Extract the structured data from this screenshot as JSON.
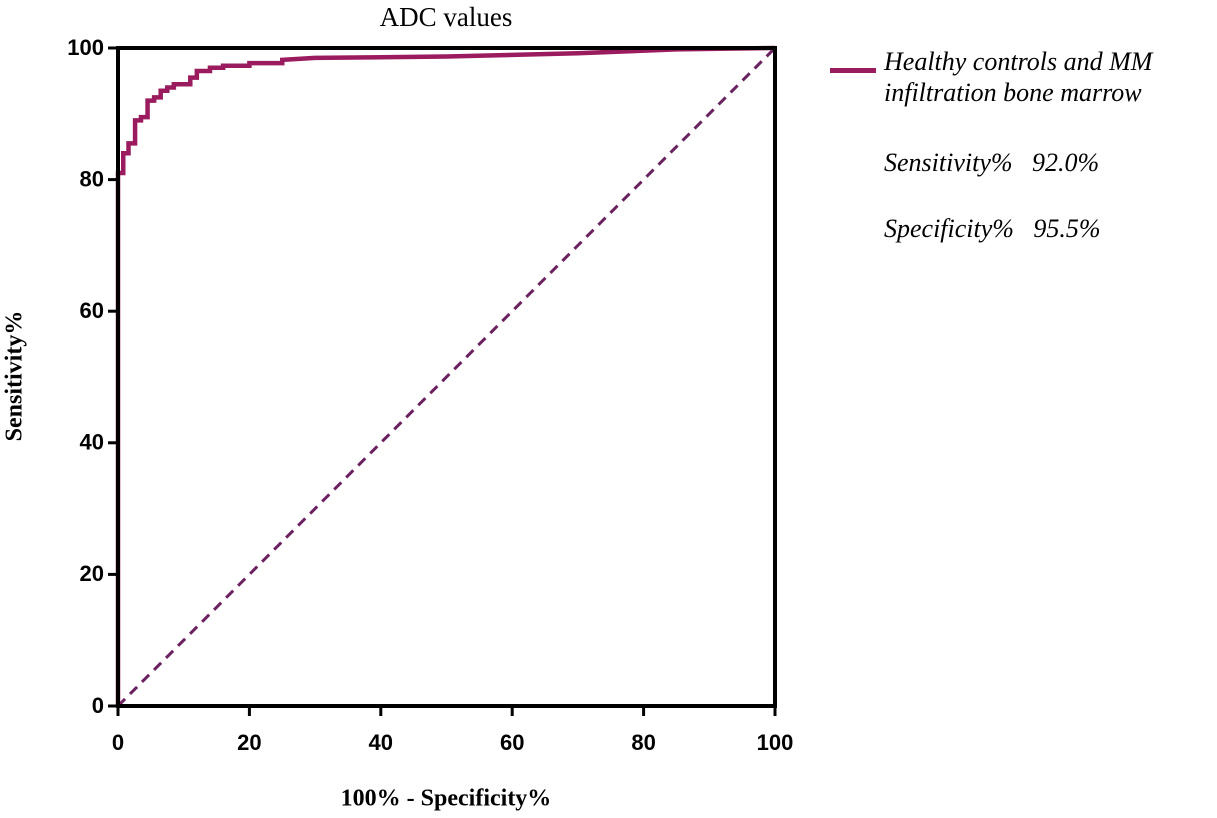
{
  "chart_data": {
    "type": "line",
    "title": "ADC values",
    "x_label": "100% - Specificity%",
    "y_label": "Sensitivity%",
    "x": [
      0,
      0,
      0.8,
      0.8,
      1.6,
      1.6,
      2.6,
      2.6,
      3.5,
      3.5,
      4.5,
      4.5,
      5.5,
      5.5,
      6.5,
      6.5,
      7.5,
      7.5,
      8.5,
      8.5,
      11,
      11,
      12,
      12,
      14,
      14,
      16,
      16,
      20,
      20,
      25,
      25,
      30,
      50,
      70,
      85,
      100
    ],
    "series": [
      {
        "name": "Healthy controls and MM infiltration bone marrow",
        "color": "#9b1b5f",
        "values": [
          0,
          81,
          81,
          84,
          84,
          85.5,
          85.5,
          89,
          89,
          89.5,
          89.5,
          92,
          92,
          92.5,
          92.5,
          93.5,
          93.5,
          94,
          94,
          94.5,
          94.5,
          95.5,
          95.5,
          96.5,
          96.5,
          97,
          97,
          97.3,
          97.3,
          97.7,
          97.7,
          98.2,
          98.5,
          98.7,
          99.2,
          99.8,
          100
        ]
      }
    ],
    "reference_line": {
      "x": [
        0,
        100
      ],
      "values": [
        0,
        100
      ],
      "color": "#6b2060",
      "dashed": true
    },
    "xlim": [
      0,
      100
    ],
    "ylim": [
      0,
      100
    ],
    "xticks": [
      0,
      20,
      40,
      60,
      80,
      100
    ],
    "yticks": [
      0,
      20,
      40,
      60,
      80,
      100
    ],
    "grid": false,
    "annotations": [
      "Sensitivity%   92.0%",
      "Specificity%   95.5%"
    ]
  }
}
